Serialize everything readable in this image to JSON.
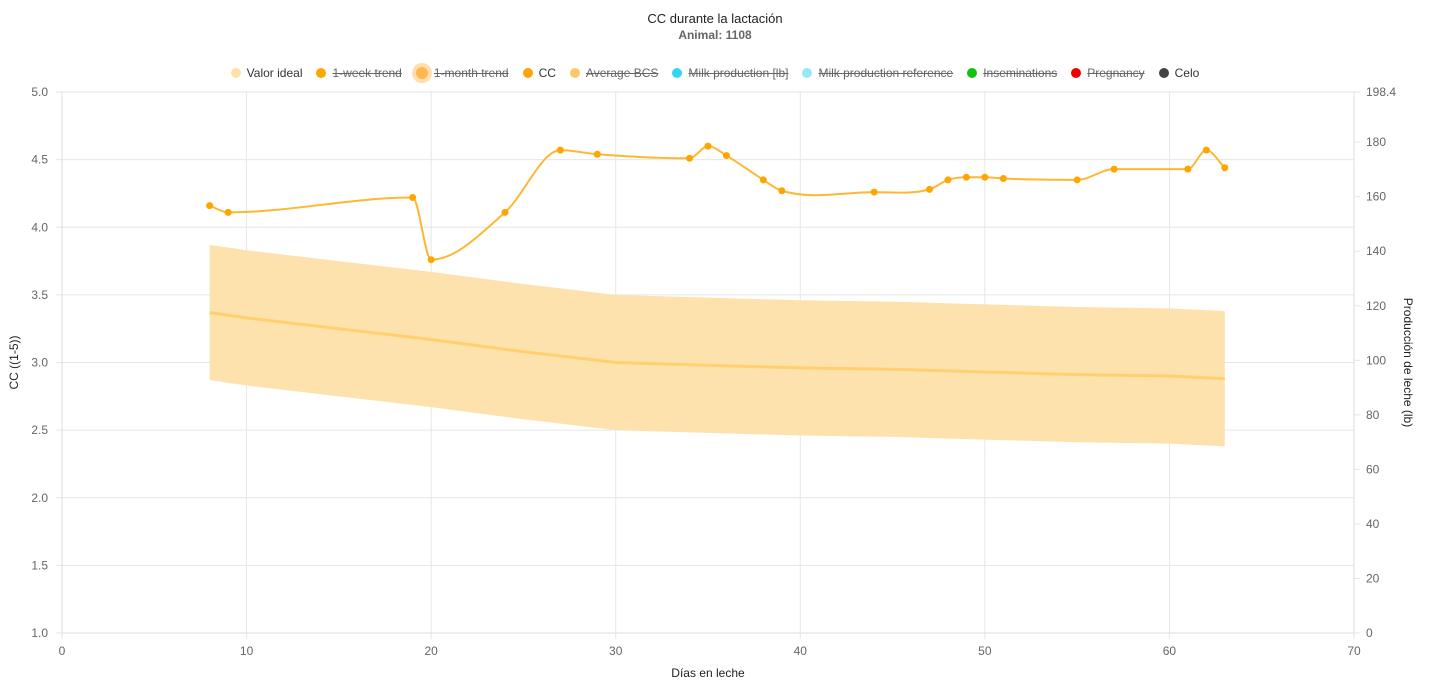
{
  "chart_data": {
    "type": "line",
    "title": "CC durante la lactación",
    "subtitle": "Animal: 1108",
    "xlabel": "Días en leche",
    "ylabel": "CC ((1-5))",
    "y2label": "Producción de leche (lb)",
    "xlim": [
      0,
      70
    ],
    "ylim": [
      1.0,
      5.0
    ],
    "y2lim": [
      0,
      198.4
    ],
    "xticks": [
      "0",
      "10",
      "20",
      "30",
      "40",
      "50",
      "60",
      "70"
    ],
    "yticks": [
      "1.0",
      "1.5",
      "2.0",
      "2.5",
      "3.0",
      "3.5",
      "4.0",
      "4.5",
      "5.0"
    ],
    "y2ticks": [
      "0",
      "20",
      "40",
      "60",
      "80",
      "100",
      "120",
      "140",
      "160",
      "180",
      "198.4"
    ],
    "grid": true,
    "legend_position": "top",
    "legend": [
      {
        "label": "Valor ideal",
        "color": "#fde2a8",
        "hidden": false
      },
      {
        "label": "1-week trend",
        "color": "#ffa500",
        "hidden": true
      },
      {
        "label": "1-month trend",
        "color": "#ffb84d",
        "hidden": true,
        "large": true
      },
      {
        "label": "CC",
        "color": "#ffa500",
        "hidden": false
      },
      {
        "label": "Average BCS",
        "color": "#ffc766",
        "hidden": true
      },
      {
        "label": "Milk production [lb]",
        "color": "#36d4f5",
        "hidden": true
      },
      {
        "label": "Milk production reference",
        "color": "#99e6f8",
        "hidden": true
      },
      {
        "label": "Inseminations",
        "color": "#11c211",
        "hidden": true
      },
      {
        "label": "Pregnancy",
        "color": "#ee0000",
        "hidden": true
      },
      {
        "label": "Celo",
        "color": "#444444",
        "hidden": false
      }
    ],
    "series": [
      {
        "name": "CC",
        "color": "#ffa500",
        "x": [
          8,
          9,
          19,
          20,
          24,
          27,
          29,
          34,
          35,
          36,
          38,
          39,
          44,
          47,
          48,
          49,
          50,
          51,
          55,
          57,
          61,
          62,
          63
        ],
        "y": [
          4.16,
          4.11,
          4.22,
          3.76,
          4.11,
          4.57,
          4.54,
          4.51,
          4.6,
          4.53,
          4.35,
          4.27,
          4.26,
          4.28,
          4.35,
          4.37,
          4.37,
          4.36,
          4.35,
          4.43,
          4.43,
          4.57,
          4.44
        ]
      },
      {
        "name": "Valor ideal",
        "color": "#ffcf70",
        "x": [
          8,
          10,
          15,
          20,
          25,
          30,
          35,
          40,
          45,
          50,
          55,
          60,
          63
        ],
        "y": [
          3.37,
          3.33,
          3.25,
          3.17,
          3.08,
          3.0,
          2.98,
          2.96,
          2.95,
          2.93,
          2.91,
          2.9,
          2.88
        ],
        "upper": [
          3.87,
          3.83,
          3.75,
          3.67,
          3.58,
          3.5,
          3.48,
          3.46,
          3.45,
          3.43,
          3.41,
          3.4,
          3.38
        ],
        "lower": [
          2.87,
          2.83,
          2.75,
          2.67,
          2.58,
          2.5,
          2.48,
          2.46,
          2.45,
          2.43,
          2.41,
          2.4,
          2.38
        ]
      }
    ]
  }
}
